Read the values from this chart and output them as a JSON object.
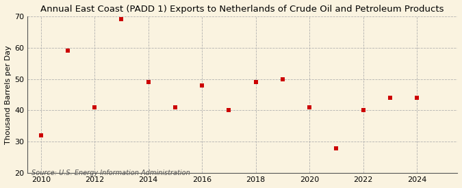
{
  "title": "Annual East Coast (PADD 1) Exports to Netherlands of Crude Oil and Petroleum Products",
  "ylabel": "Thousand Barrels per Day",
  "source": "Source: U.S. Energy Information Administration",
  "x": [
    2010,
    2011,
    2012,
    2013,
    2014,
    2015,
    2016,
    2017,
    2018,
    2019,
    2020,
    2021,
    2022,
    2023,
    2024
  ],
  "y": [
    32,
    59,
    41,
    69,
    49,
    41,
    48,
    40,
    49,
    50,
    41,
    28,
    40,
    44,
    44
  ],
  "xlim": [
    2009.5,
    2025.5
  ],
  "ylim": [
    20,
    70
  ],
  "yticks": [
    20,
    30,
    40,
    50,
    60,
    70
  ],
  "xticks": [
    2010,
    2012,
    2014,
    2016,
    2018,
    2020,
    2022,
    2024
  ],
  "marker_color": "#cc0000",
  "marker": "s",
  "marker_size": 4,
  "background_color": "#faf3e0",
  "grid_color": "#aaaaaa",
  "title_fontsize": 9.5,
  "label_fontsize": 8.0,
  "tick_fontsize": 8.0,
  "source_fontsize": 7.0
}
